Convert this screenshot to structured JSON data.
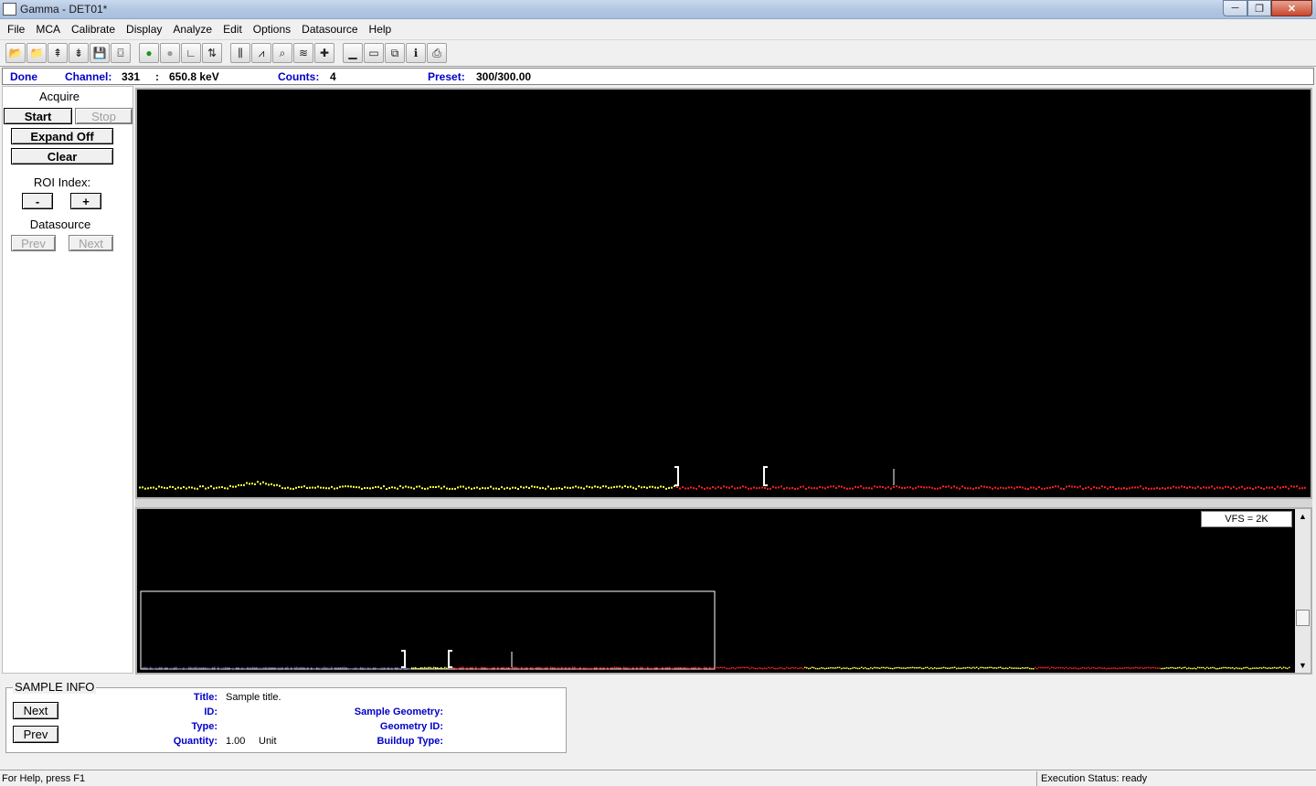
{
  "window": {
    "title": "Gamma - DET01*",
    "minimize": "─",
    "maximize": "❐",
    "close": "✕"
  },
  "menu": [
    "File",
    "MCA",
    "Calibrate",
    "Display",
    "Analyze",
    "Edit",
    "Options",
    "Datasource",
    "Help"
  ],
  "toolbar": {
    "groups": [
      [
        "open-icon",
        "open-folder-icon",
        "upload-icon",
        "download-icon",
        "save-icon",
        "print-preview-icon"
      ],
      [
        "start-acquire-icon",
        "stop-acquire-icon",
        "axis-icon",
        "peak-table-icon"
      ],
      [
        "roi-icon",
        "spectrum-icon",
        "zoom-icon",
        "layers-icon",
        "crosshair-icon"
      ],
      [
        "minimize-view-icon",
        "window-icon",
        "cascade-icon",
        "info-icon",
        "printer-icon"
      ]
    ],
    "glyphs": {
      "open-icon": "📂",
      "open-folder-icon": "📁",
      "upload-icon": "⇞",
      "download-icon": "⇟",
      "save-icon": "💾",
      "print-preview-icon": "⌼",
      "start-acquire-icon": "●",
      "stop-acquire-icon": "●",
      "axis-icon": "∟",
      "peak-table-icon": "⇅",
      "roi-icon": "⫼",
      "spectrum-icon": "⩘",
      "zoom-icon": "⌕",
      "layers-icon": "≋",
      "crosshair-icon": "✚",
      "minimize-view-icon": "▁",
      "window-icon": "▭",
      "cascade-icon": "⧉",
      "info-icon": "ℹ",
      "printer-icon": "⎙"
    }
  },
  "status": {
    "state": "Done",
    "channel_label": "Channel:",
    "channel_value": "331",
    "separator": ":",
    "energy": "650.8 keV",
    "counts_label": "Counts:",
    "counts_value": "4",
    "preset_label": "Preset:",
    "preset_value": "300/300.00"
  },
  "left_panel": {
    "acquire_label": "Acquire",
    "start": "Start",
    "stop": "Stop",
    "expand": "Expand Off",
    "clear": "Clear",
    "roi_label": "ROI Index:",
    "roi_minus": "-",
    "roi_plus": "+",
    "datasource_label": "Datasource",
    "prev": "Prev",
    "next": "Next"
  },
  "bottom_plot": {
    "vfs": "VFS = 2K",
    "scroll_up": "▲",
    "scroll_down": "▼"
  },
  "sample_info": {
    "heading": "SAMPLE INFO",
    "next": "Next",
    "prev": "Prev",
    "title_label": "Title:",
    "title_value": "Sample title.",
    "id_label": "ID:",
    "id_value": "",
    "type_label": "Type:",
    "type_value": "",
    "quantity_label": "Quantity:",
    "quantity_value": "1.00",
    "quantity_unit": "Unit",
    "geometry_label": "Sample Geometry:",
    "geometry_id_label": "Geometry ID:",
    "buildup_label": "Buildup Type:"
  },
  "statusbar": {
    "help": "For Help, press F1",
    "exec": "Execution Status: ready"
  },
  "colors": {
    "spectrum_low": "#ffff40",
    "spectrum_high": "#ff2020",
    "marker": "#ffffff",
    "label_blue": "#0000c8"
  }
}
